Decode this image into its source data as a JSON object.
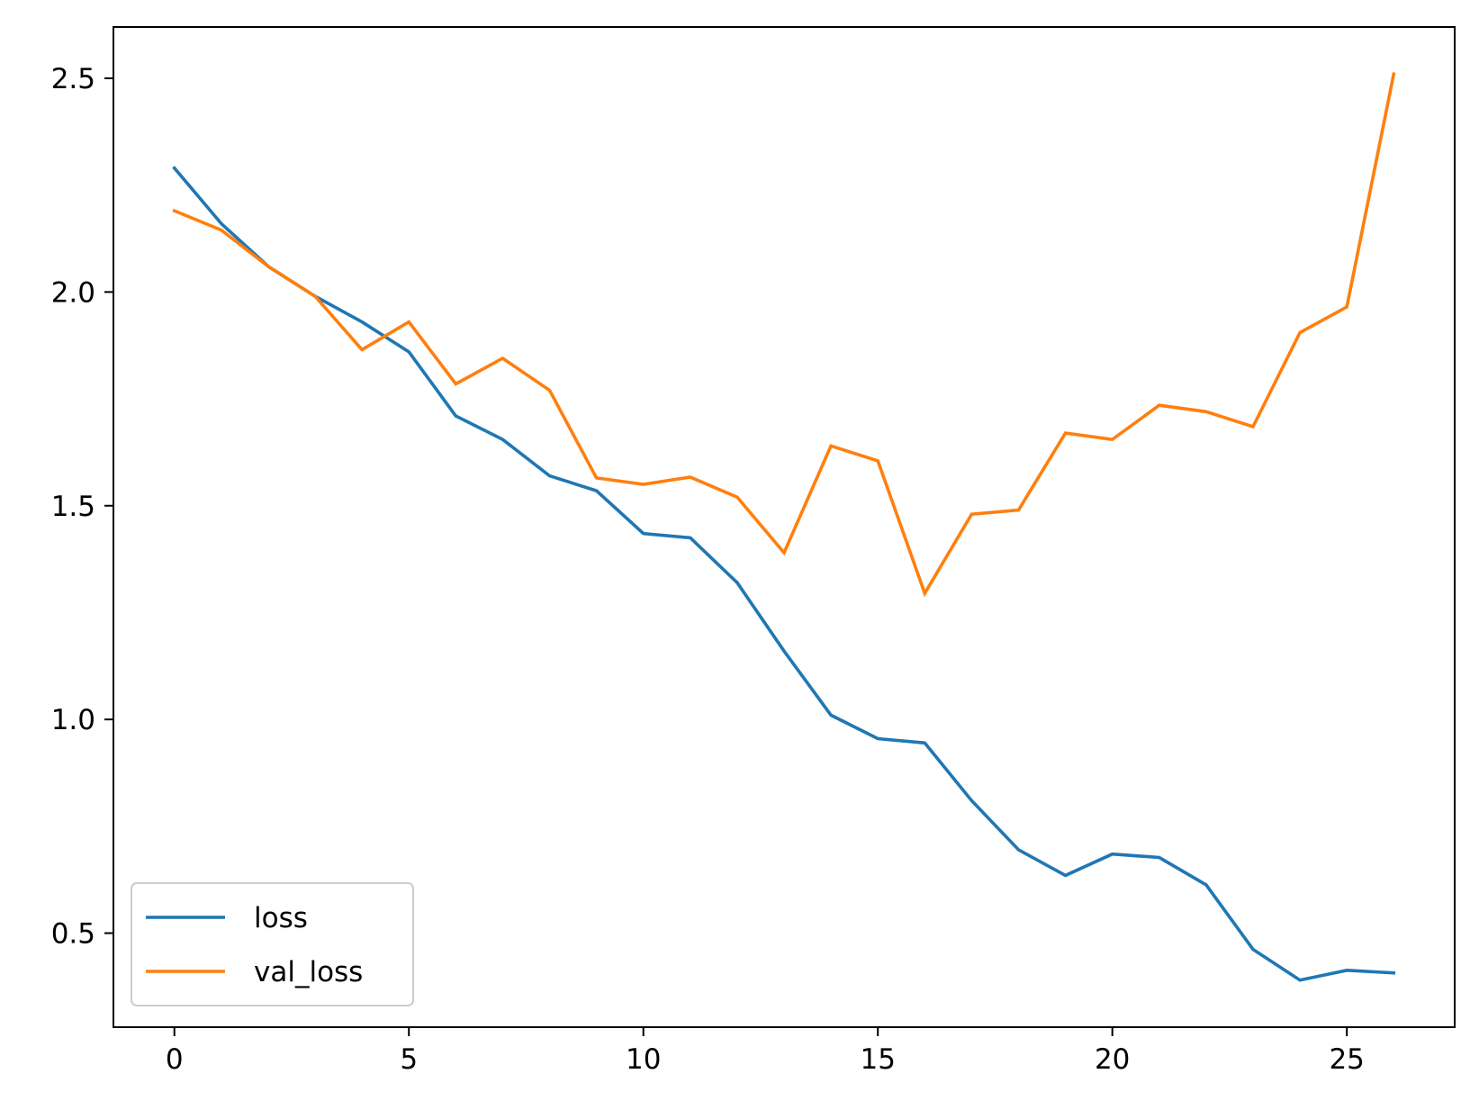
{
  "chart_data": {
    "type": "line",
    "title": "",
    "xlabel": "",
    "ylabel": "",
    "xlim": [
      -1.3,
      27.3
    ],
    "ylim": [
      0.28,
      2.62
    ],
    "x_ticks": [
      0,
      5,
      10,
      15,
      20,
      25
    ],
    "y_ticks": [
      0.5,
      1.0,
      1.5,
      2.0,
      2.5
    ],
    "x_tick_labels": [
      "0",
      "5",
      "10",
      "15",
      "20",
      "25"
    ],
    "y_tick_labels": [
      "0.5",
      "1.0",
      "1.5",
      "2.0",
      "2.5"
    ],
    "grid": false,
    "legend_position": "lower-left",
    "x": [
      0,
      1,
      2,
      3,
      4,
      5,
      6,
      7,
      8,
      9,
      10,
      11,
      12,
      13,
      14,
      15,
      16,
      17,
      18,
      19,
      20,
      21,
      22,
      23,
      24,
      25,
      26
    ],
    "series": [
      {
        "name": "loss",
        "color": "#1f77b4",
        "values": [
          2.29,
          2.16,
          2.06,
          1.99,
          1.93,
          1.86,
          1.71,
          1.655,
          1.57,
          1.535,
          1.435,
          1.425,
          1.32,
          1.16,
          1.01,
          0.955,
          0.945,
          0.81,
          0.695,
          0.635,
          0.685,
          0.677,
          0.613,
          0.462,
          0.39,
          0.413,
          0.407
        ]
      },
      {
        "name": "val_loss",
        "color": "#ff7f0e",
        "values": [
          2.19,
          2.145,
          2.06,
          1.99,
          1.865,
          1.93,
          1.785,
          1.845,
          1.77,
          1.565,
          1.55,
          1.567,
          1.52,
          1.39,
          1.64,
          1.605,
          1.295,
          1.48,
          1.49,
          1.67,
          1.655,
          1.735,
          1.72,
          1.685,
          1.905,
          1.965,
          2.51
        ]
      }
    ]
  }
}
